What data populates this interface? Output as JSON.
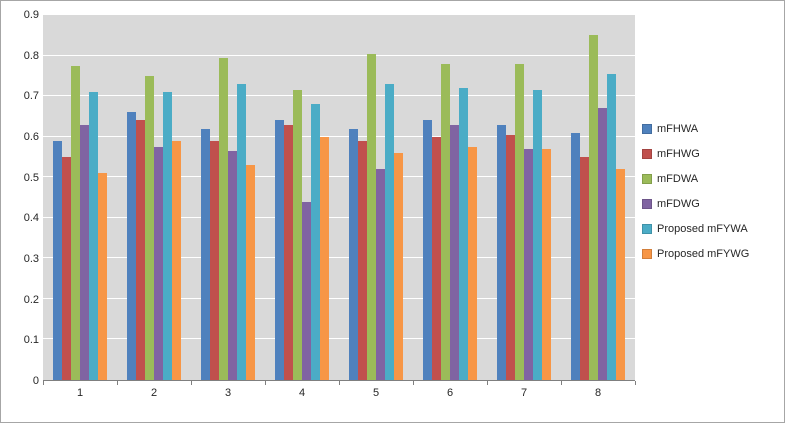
{
  "chart_data": {
    "type": "bar",
    "title": "",
    "xlabel": "",
    "ylabel": "",
    "ylim": [
      0,
      0.9
    ],
    "ytick_step": 0.1,
    "yticks": [
      "0",
      "0.1",
      "0.2",
      "0.3",
      "0.4",
      "0.5",
      "0.6",
      "0.7",
      "0.8",
      "0.9"
    ],
    "grid": true,
    "legend_position": "right",
    "plot_background": "#d9d9d9",
    "gridline_color": "#ffffff",
    "categories": [
      "1",
      "2",
      "3",
      "4",
      "5",
      "6",
      "7",
      "8"
    ],
    "series": [
      {
        "name": "mFHWA",
        "color": "#4f81bd",
        "values": [
          0.59,
          0.66,
          0.62,
          0.64,
          0.62,
          0.64,
          0.63,
          0.61
        ]
      },
      {
        "name": "mFHWG",
        "color": "#c0504d",
        "values": [
          0.55,
          0.64,
          0.59,
          0.63,
          0.59,
          0.6,
          0.605,
          0.55
        ]
      },
      {
        "name": "mFDWA",
        "color": "#9bbb59",
        "values": [
          0.775,
          0.75,
          0.795,
          0.715,
          0.805,
          0.78,
          0.78,
          0.85
        ]
      },
      {
        "name": "mFDWG",
        "color": "#8064a2",
        "values": [
          0.63,
          0.575,
          0.565,
          0.44,
          0.52,
          0.63,
          0.57,
          0.67
        ]
      },
      {
        "name": "Proposed mFYWA",
        "color": "#4bacc6",
        "values": [
          0.71,
          0.71,
          0.73,
          0.68,
          0.73,
          0.72,
          0.715,
          0.755
        ]
      },
      {
        "name": "Proposed mFYWG",
        "color": "#f79646",
        "values": [
          0.51,
          0.59,
          0.53,
          0.6,
          0.56,
          0.575,
          0.57,
          0.52
        ]
      }
    ]
  }
}
